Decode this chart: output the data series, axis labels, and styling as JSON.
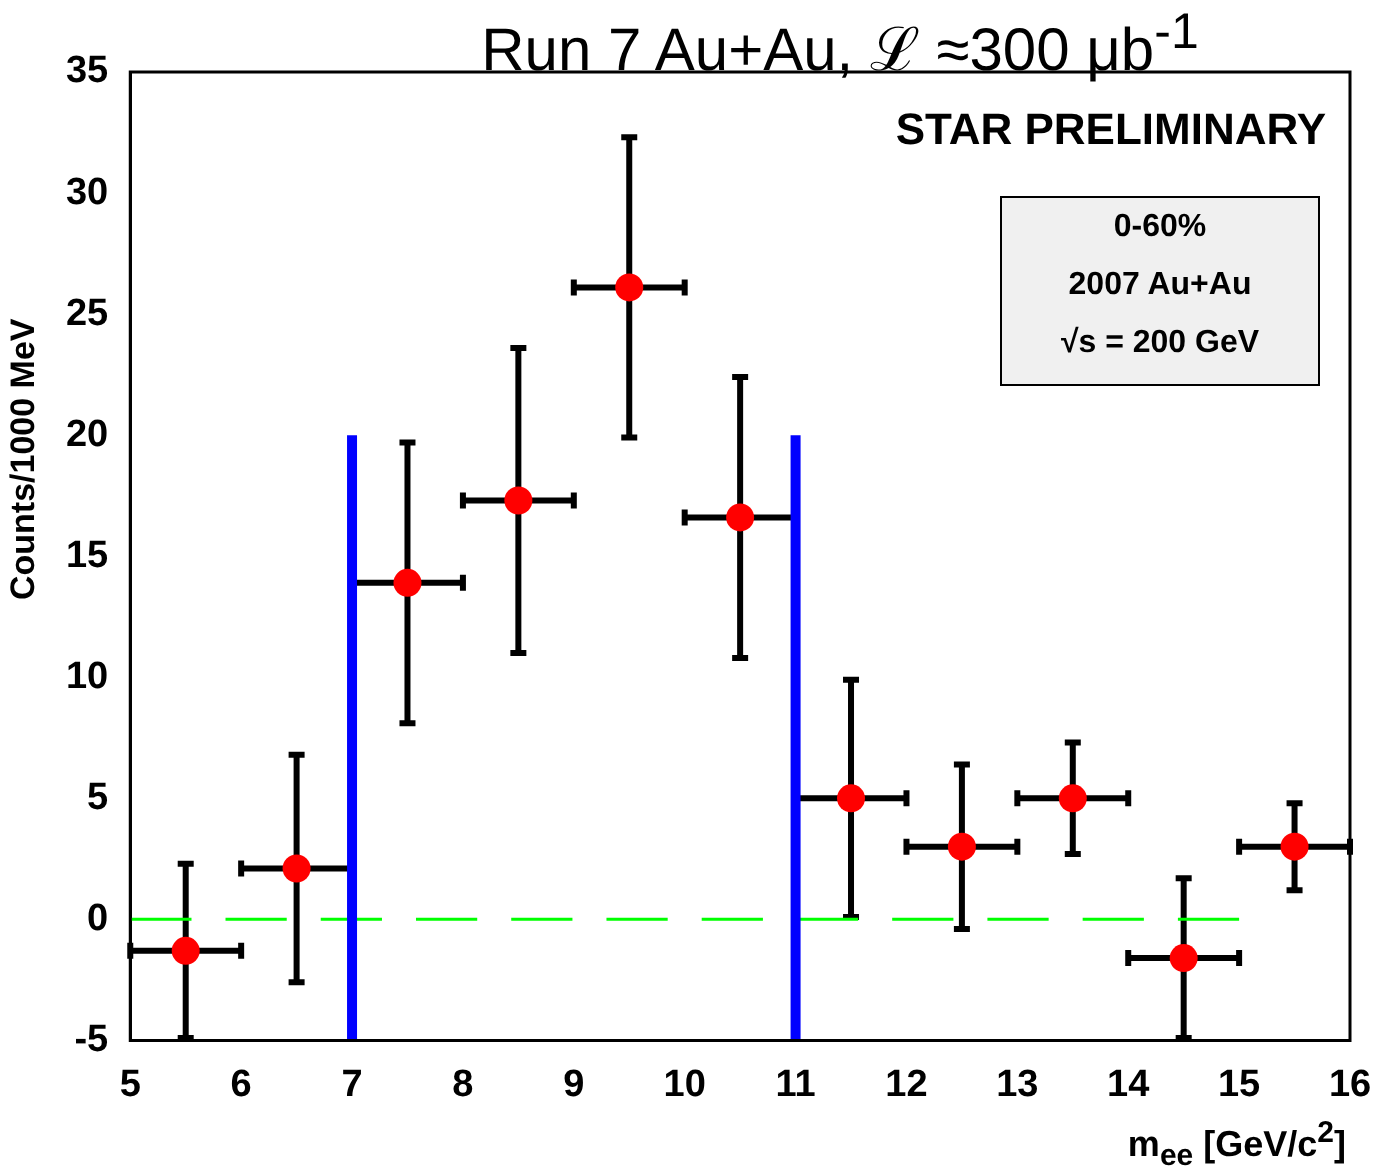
{
  "chart_data": {
    "type": "scatter",
    "title": "Run 7 Au+Au, ℒ ≈300 μb$^{-1}$",
    "xlabel": "m$_{ee}$ [GeV/c$^{2}$]",
    "ylabel": "Counts/1000 MeV",
    "annotations": [
      "STAR PRELIMINARY",
      "0-60%",
      "2007 Au+Au",
      "√s = 200 GeV"
    ],
    "x": [
      5.5,
      6.5,
      7.5,
      8.5,
      9.5,
      10.5,
      11.5,
      12.5,
      13.5,
      14.5,
      15.5
    ],
    "series": [
      {
        "color": "#ff0000",
        "marker": "circle",
        "values": [
          -1.3,
          2.1,
          13.9,
          17.3,
          26.1,
          16.6,
          5.0,
          3.0,
          5.0,
          -1.6,
          3.0
        ],
        "errors": [
          3.6,
          4.7,
          5.8,
          6.3,
          6.2,
          5.8,
          4.9,
          3.4,
          2.3,
          3.3,
          1.8
        ],
        "xerrors": [
          0.5,
          0.5,
          0.5,
          0.5,
          0.5,
          0.5,
          0.5,
          0.5,
          0.5,
          0.5,
          0.5
        ]
      },
      {
        "type": "line",
        "color": "#0000ff",
        "marker": "none",
        "x": [
          7,
          7
        ],
        "values": [
          -5,
          20
        ]
      },
      {
        "type": "line",
        "color": "#0000ff",
        "marker": "none",
        "x": [
          11,
          11
        ],
        "values": [
          -5,
          20
        ]
      },
      {
        "type": "line",
        "color": "#00ff00",
        "marker": "none",
        "line_style": "dashed",
        "x": [
          5,
          15
        ],
        "values": [
          0,
          0
        ]
      }
    ],
    "xlim": [
      5,
      16
    ],
    "xticks": [
      5,
      6,
      7,
      8,
      9,
      10,
      11,
      12,
      13,
      14,
      15,
      16
    ],
    "ylim": [
      -5,
      35
    ],
    "yticks": [
      -5,
      0,
      5,
      10,
      15,
      20,
      25,
      30,
      35
    ],
    "grid": false,
    "legend": false
  }
}
